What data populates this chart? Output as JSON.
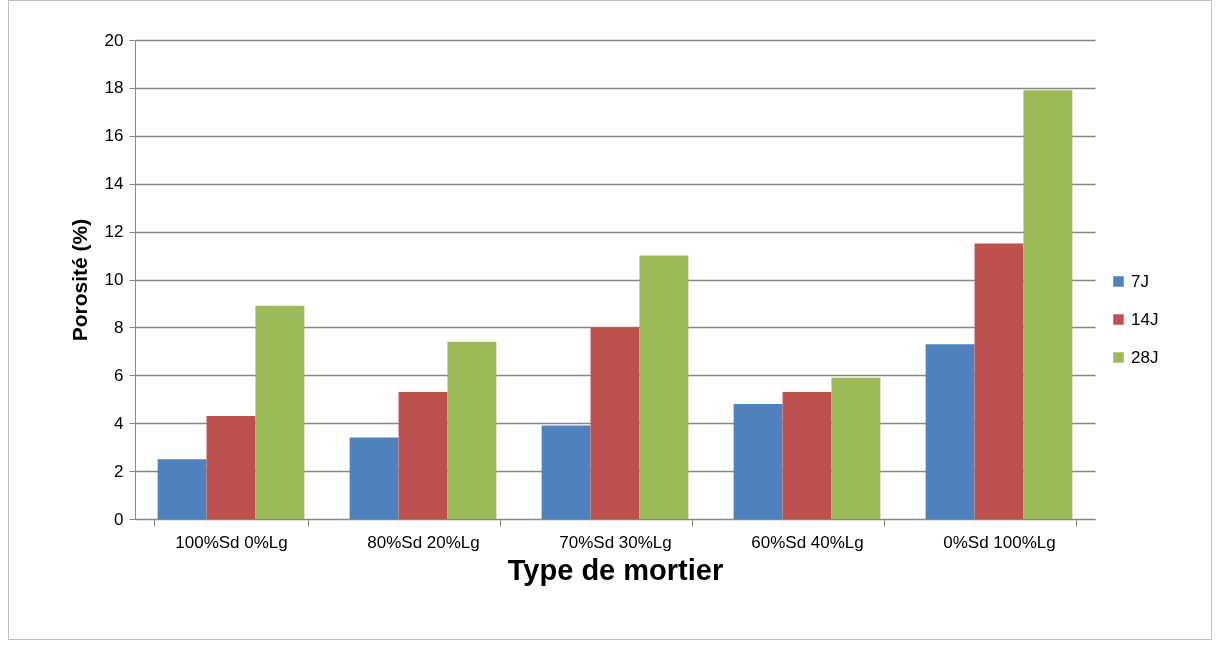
{
  "chart_data": {
    "type": "bar",
    "xlabel": "Type de mortier",
    "ylabel": "Porosité (%)",
    "categories": [
      "100%Sd  0%Lg",
      "80%Sd  20%Lg",
      "70%Sd  30%Lg",
      "60%Sd  40%Lg",
      "0%Sd  100%Lg"
    ],
    "series": [
      {
        "name": "7J",
        "color": "#4f81bd",
        "values": [
          2.5,
          3.4,
          3.9,
          4.8,
          7.3
        ]
      },
      {
        "name": "14J",
        "color": "#c0504d",
        "values": [
          4.3,
          5.3,
          8.0,
          5.3,
          11.5
        ]
      },
      {
        "name": "28J",
        "color": "#9bbb59",
        "values": [
          8.9,
          7.4,
          11.0,
          5.9,
          17.9
        ]
      }
    ],
    "ylim": [
      0,
      20
    ],
    "yticks": [
      0,
      2,
      4,
      6,
      8,
      10,
      12,
      14,
      16,
      18,
      20
    ],
    "grid": "y",
    "legend": "right"
  }
}
